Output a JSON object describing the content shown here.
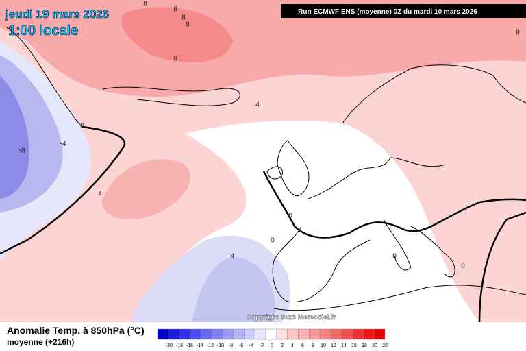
{
  "header": {
    "date": "jeudi 19 mars 2026",
    "time": "1:00 locale",
    "run": "Run ECMWF ENS (moyenne) 0Z du mardi 10 mars 2026"
  },
  "copyright": "Copyright 2026 Meteociel.fr",
  "legend": {
    "title": "Anomalie Temp. à 850hPa (°C)",
    "subtitle": "moyenne  (+216h)",
    "labels": [
      -20,
      -18,
      -16,
      -14,
      -12,
      -10,
      -8,
      -6,
      -4,
      -2,
      0,
      2,
      4,
      6,
      8,
      10,
      12,
      14,
      16,
      18,
      20,
      22
    ]
  },
  "contour_labels": [
    8,
    8,
    8,
    8,
    8,
    8,
    4,
    4,
    -4,
    -8,
    -4,
    0,
    0,
    0,
    0,
    0
  ]
}
